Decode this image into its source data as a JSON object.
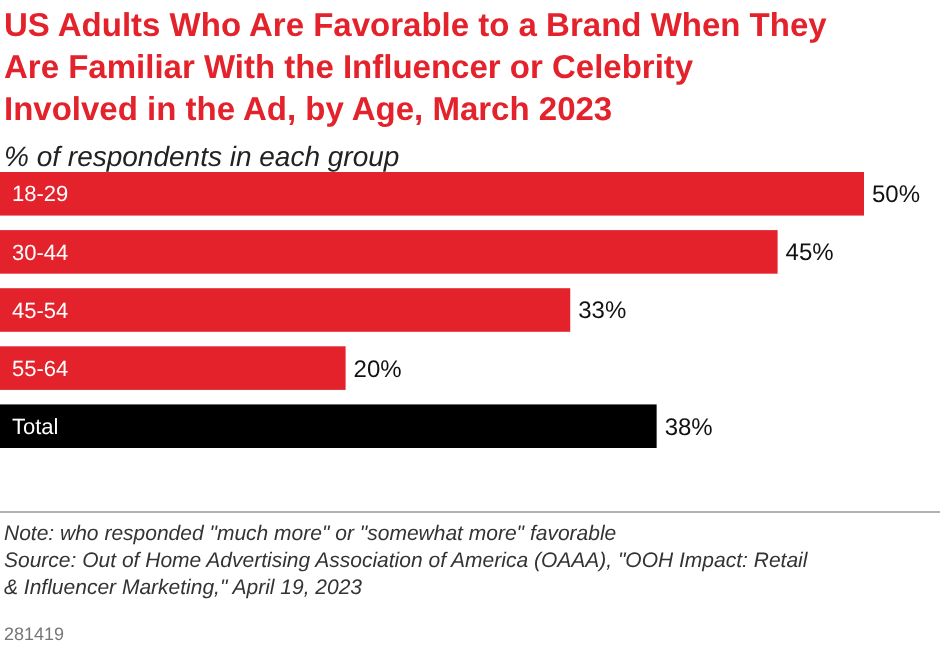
{
  "chart_data": {
    "type": "bar",
    "orientation": "horizontal",
    "title": "US Adults Who Are Favorable to a Brand When They Are Familiar With the Influencer or Celebrity Involved in the Ad, by Age, March 2023",
    "subtitle": "% of respondents in each group",
    "categories": [
      "18-29",
      "30-44",
      "45-54",
      "55-64",
      "Total"
    ],
    "values": [
      50,
      45,
      33,
      20,
      38
    ],
    "colors": [
      "#e3222b",
      "#e3222b",
      "#e3222b",
      "#e3222b",
      "#000000"
    ],
    "value_labels": [
      "50%",
      "45%",
      "33%",
      "20%",
      "38%"
    ],
    "annotations": [
      "Note: who responded \"much more\" or \"somewhat more\" favorable",
      "Source: Out of Home Advertising Association of America (OAAA), \"OOH Impact: Retail & Influencer Marketing,\" April 19, 2023",
      "281419"
    ]
  }
}
